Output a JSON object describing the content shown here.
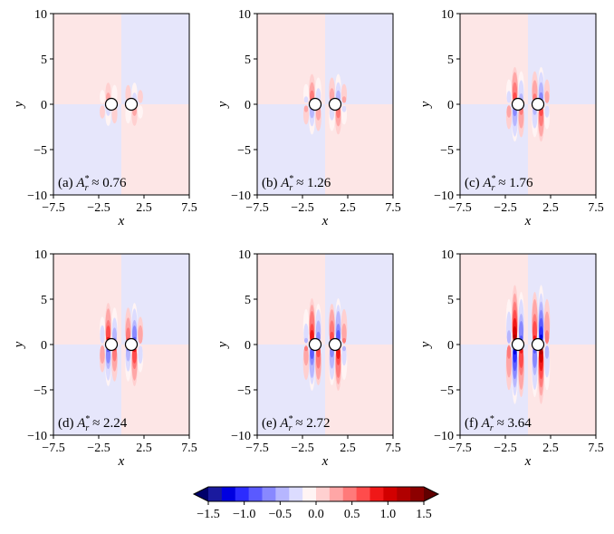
{
  "chart_data": [
    {
      "type": "heatmap",
      "panel": "(a)",
      "label_value": "0.76",
      "xlabel": "x",
      "ylabel": "y",
      "xlim": [
        -7.5,
        7.5
      ],
      "ylim": [
        -10,
        10
      ],
      "x_ticks": [
        "−7.5",
        "−2.5",
        "2.5",
        "7.5"
      ],
      "y_ticks": [
        "10",
        "5",
        "0",
        "−5",
        "−10"
      ],
      "amplitude": 0.35,
      "lobe_extent": 2.6
    },
    {
      "type": "heatmap",
      "panel": "(b)",
      "label_value": "1.26",
      "xlabel": "x",
      "ylabel": "y",
      "xlim": [
        -7.5,
        7.5
      ],
      "ylim": [
        -10,
        10
      ],
      "x_ticks": [
        "−7.5",
        "−2.5",
        "2.5",
        "7.5"
      ],
      "y_ticks": [
        "10",
        "5",
        "0",
        "−5",
        "−10"
      ],
      "amplitude": 0.7,
      "lobe_extent": 3.2
    },
    {
      "type": "heatmap",
      "panel": "(c)",
      "label_value": "1.76",
      "xlabel": "x",
      "ylabel": "y",
      "xlim": [
        -7.5,
        7.5
      ],
      "ylim": [
        -10,
        10
      ],
      "x_ticks": [
        "−7.5",
        "−2.5",
        "2.5",
        "7.5"
      ],
      "y_ticks": [
        "10",
        "5",
        "0",
        "−5",
        "−10"
      ],
      "amplitude": 0.85,
      "lobe_extent": 4.0
    },
    {
      "type": "heatmap",
      "panel": "(d)",
      "label_value": "2.24",
      "xlabel": "x",
      "ylabel": "y",
      "xlim": [
        -7.5,
        7.5
      ],
      "ylim": [
        -10,
        10
      ],
      "x_ticks": [
        "−7.5",
        "−2.5",
        "2.5",
        "7.5"
      ],
      "y_ticks": [
        "10",
        "5",
        "0",
        "−5",
        "−10"
      ],
      "amplitude": 1.0,
      "lobe_extent": 4.5
    },
    {
      "type": "heatmap",
      "panel": "(e)",
      "label_value": "2.72",
      "xlabel": "x",
      "ylabel": "y",
      "xlim": [
        -7.5,
        7.5
      ],
      "ylim": [
        -10,
        10
      ],
      "x_ticks": [
        "−7.5",
        "−2.5",
        "2.5",
        "7.5"
      ],
      "y_ticks": [
        "10",
        "5",
        "0",
        "−5",
        "−10"
      ],
      "amplitude": 1.1,
      "lobe_extent": 5.0
    },
    {
      "type": "heatmap",
      "panel": "(f)",
      "label_value": "3.64",
      "xlabel": "x",
      "ylabel": "y",
      "xlim": [
        -7.5,
        7.5
      ],
      "ylim": [
        -10,
        10
      ],
      "x_ticks": [
        "−7.5",
        "−2.5",
        "2.5",
        "7.5"
      ],
      "y_ticks": [
        "10",
        "5",
        "0",
        "−5",
        "−10"
      ],
      "amplitude": 1.35,
      "lobe_extent": 6.5
    }
  ],
  "panel_label_symbol": "A",
  "panel_label_sup": "*",
  "panel_label_sub": "r",
  "panel_label_approx": "≈",
  "colorbar": {
    "range": [
      -1.5,
      1.5
    ],
    "extend": "both",
    "tick_labels": [
      "−1.5",
      "−1.0",
      "−0.5",
      "0.0",
      "0.5",
      "1.0",
      "1.5"
    ],
    "colors": [
      "#1a1a9e",
      "#0000e0",
      "#2c2cff",
      "#5a5aff",
      "#8888ff",
      "#b6b6ff",
      "#dcdcff",
      "#fff4f4",
      "#ffd0d0",
      "#ffa6a6",
      "#ff7a7a",
      "#ff4c4c",
      "#f01818",
      "#d20000",
      "#b00000",
      "#8c0000"
    ],
    "under_color": "#00006a",
    "over_color": "#600000"
  },
  "background_colors": {
    "positive": "#fde6e6",
    "negative": "#e6e6fb"
  }
}
